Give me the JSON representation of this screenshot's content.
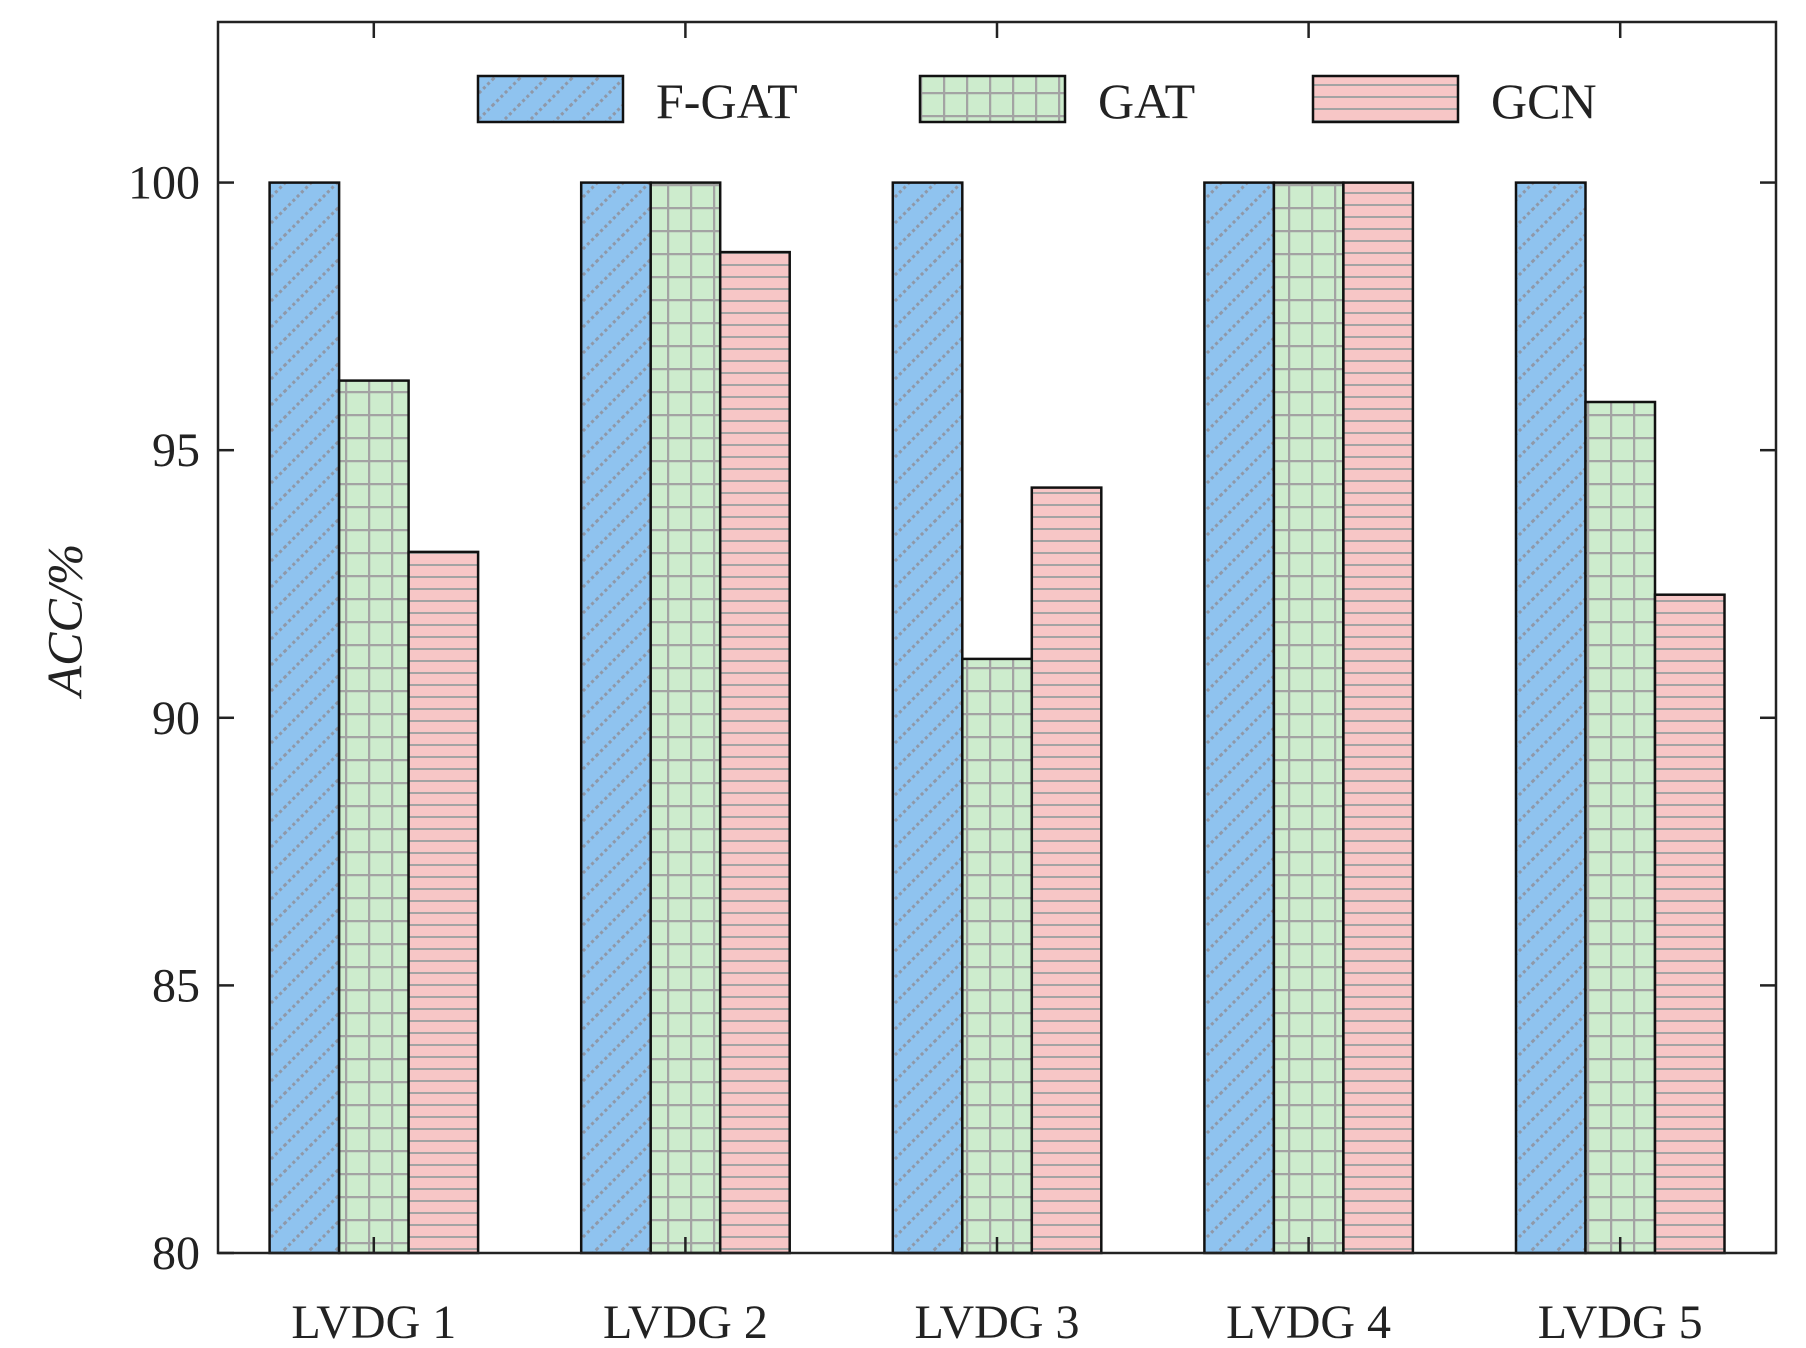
{
  "chart_data": {
    "type": "bar",
    "title": "",
    "xlabel": "",
    "ylabel": "ACC/%",
    "ylim": [
      80,
      103
    ],
    "yticks": [
      80,
      85,
      90,
      95,
      100
    ],
    "categories": [
      "LVDG 1",
      "LVDG 2",
      "LVDG 3",
      "LVDG 4",
      "LVDG 5"
    ],
    "series": [
      {
        "name": "F-GAT",
        "values": [
          100,
          100,
          100,
          100,
          100
        ],
        "color": "#8fc3ef",
        "pattern": "diagonal-hatch"
      },
      {
        "name": "GAT",
        "values": [
          96.3,
          100,
          91.1,
          100,
          95.9
        ],
        "color": "#cdeccd",
        "pattern": "grid"
      },
      {
        "name": "GCN",
        "values": [
          93.1,
          98.7,
          94.3,
          100,
          92.3
        ],
        "color": "#f7c6c6",
        "pattern": "horizontal-lines"
      }
    ],
    "legend_position": "top",
    "grid": false
  }
}
